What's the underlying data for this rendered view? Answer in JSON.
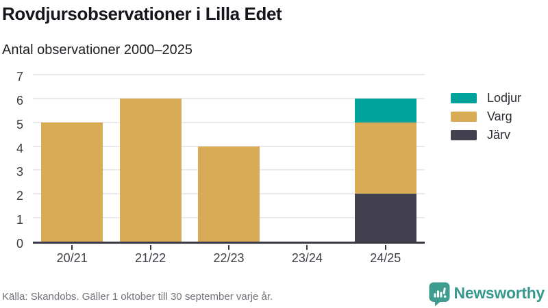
{
  "header": {
    "title": "Rovdjursobservationer i Lilla Edet",
    "subtitle": "Antal observationer 2000–2025"
  },
  "chart_data": {
    "type": "bar",
    "stacked": true,
    "title": "Rovdjursobservationer i Lilla Edet",
    "subtitle": "Antal observationer 2000–2025",
    "categories": [
      "20/21",
      "21/22",
      "22/23",
      "23/24",
      "24/25"
    ],
    "series": [
      {
        "name": "Järv",
        "color": "#434150",
        "values": [
          0,
          0,
          0,
          0,
          2
        ]
      },
      {
        "name": "Varg",
        "color": "#d8ab57",
        "values": [
          5,
          6,
          4,
          0,
          3
        ]
      },
      {
        "name": "Lodjur",
        "color": "#00a39a",
        "values": [
          0,
          0,
          0,
          0,
          1
        ]
      }
    ],
    "totals": [
      5,
      6,
      4,
      0,
      6
    ],
    "ylim": [
      0,
      7
    ],
    "yticks": [
      0,
      1,
      2,
      3,
      4,
      5,
      6,
      7
    ],
    "grid": true,
    "legend": {
      "position": "right",
      "order": [
        "Lodjur",
        "Varg",
        "Järv"
      ]
    }
  },
  "footer": {
    "source": "Källa: Skandobs. Gäller 1 oktober till 30 september varje år.",
    "brand": "Newsworthy"
  },
  "colors": {
    "lodjur": "#00a39a",
    "varg": "#d8ab57",
    "jarv": "#434150",
    "axis": "#3a3943",
    "gridline": "#e9e9ec",
    "brand_teal": "#3f9d90",
    "footer_text": "#71717b"
  }
}
